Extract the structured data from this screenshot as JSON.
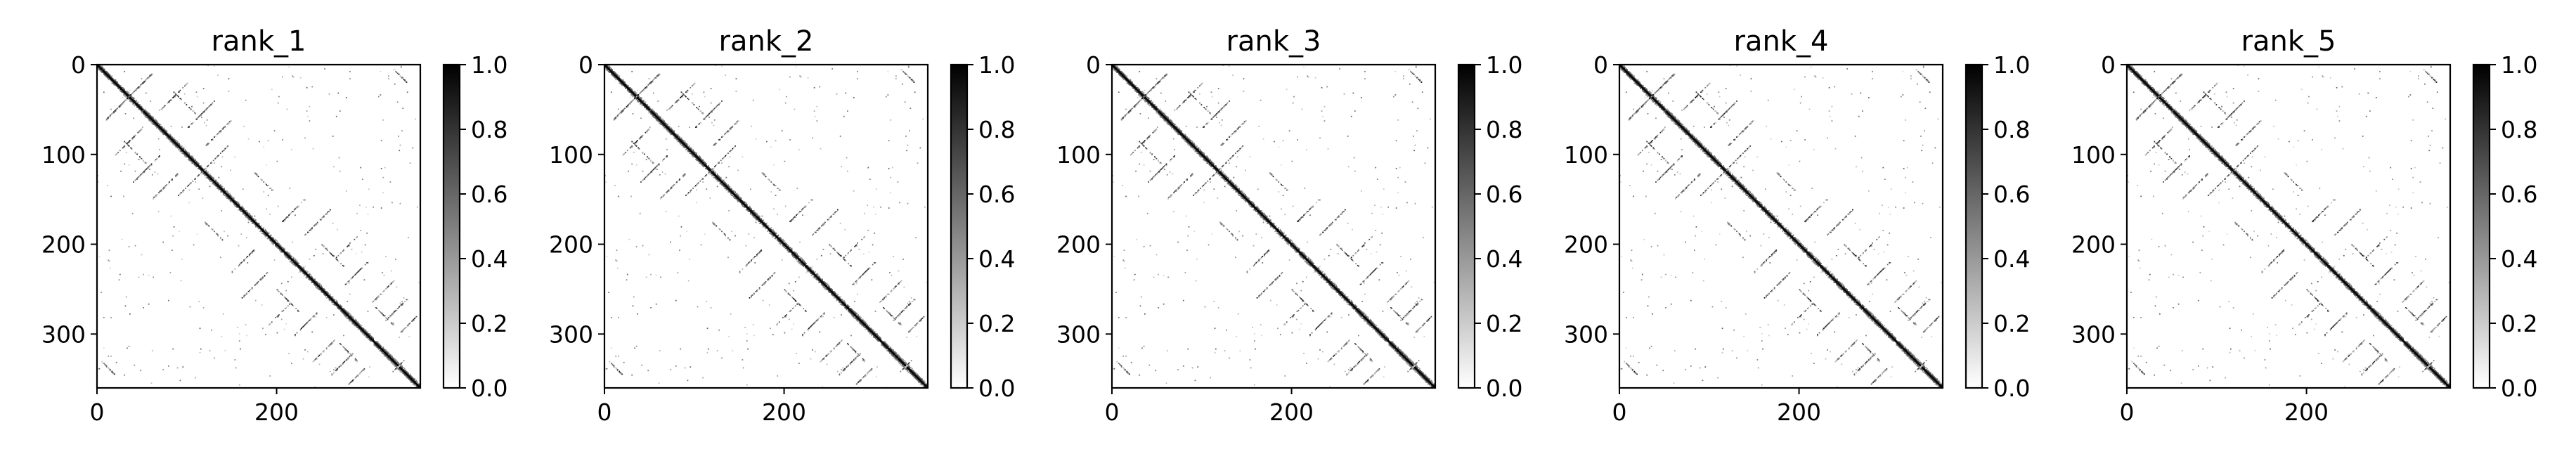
{
  "figure": {
    "background": "#ffffff",
    "colormap": "binary (white → black)",
    "colormap_low": "#ffffff",
    "colormap_high": "#000000"
  },
  "chart_data": [
    {
      "type": "heatmap",
      "title": "rank_1",
      "size": 360,
      "xlim": [
        0,
        360
      ],
      "ylim": [
        360,
        0
      ],
      "x_ticks": [
        0,
        200
      ],
      "x_tick_labels": [
        "0",
        "200"
      ],
      "y_ticks": [
        0,
        100,
        200,
        300
      ],
      "y_tick_labels": [
        "0",
        "100",
        "200",
        "300"
      ],
      "colorbar": {
        "range": [
          0.0,
          1.0
        ],
        "ticks": [
          0.0,
          0.2,
          0.4,
          0.6,
          0.8,
          1.0
        ],
        "tick_labels": [
          "0.0",
          "0.2",
          "0.4",
          "0.6",
          "0.8",
          "1.0"
        ]
      },
      "pattern": "contact map with strong main diagonal and faint off-diagonal bands; values 0–1"
    },
    {
      "type": "heatmap",
      "title": "rank_2",
      "size": 360,
      "xlim": [
        0,
        360
      ],
      "ylim": [
        360,
        0
      ],
      "x_ticks": [
        0,
        200
      ],
      "x_tick_labels": [
        "0",
        "200"
      ],
      "y_ticks": [
        0,
        100,
        200,
        300
      ],
      "y_tick_labels": [
        "0",
        "100",
        "200",
        "300"
      ],
      "colorbar": {
        "range": [
          0.0,
          1.0
        ],
        "ticks": [
          0.0,
          0.2,
          0.4,
          0.6,
          0.8,
          1.0
        ],
        "tick_labels": [
          "0.0",
          "0.2",
          "0.4",
          "0.6",
          "0.8",
          "1.0"
        ]
      },
      "pattern": "contact map with strong main diagonal and faint off-diagonal bands; values 0–1"
    },
    {
      "type": "heatmap",
      "title": "rank_3",
      "size": 360,
      "xlim": [
        0,
        360
      ],
      "ylim": [
        360,
        0
      ],
      "x_ticks": [
        0,
        200
      ],
      "x_tick_labels": [
        "0",
        "200"
      ],
      "y_ticks": [
        0,
        100,
        200,
        300
      ],
      "y_tick_labels": [
        "0",
        "100",
        "200",
        "300"
      ],
      "colorbar": {
        "range": [
          0.0,
          1.0
        ],
        "ticks": [
          0.0,
          0.2,
          0.4,
          0.6,
          0.8,
          1.0
        ],
        "tick_labels": [
          "0.0",
          "0.2",
          "0.4",
          "0.6",
          "0.8",
          "1.0"
        ]
      },
      "pattern": "contact map with strong main diagonal and faint off-diagonal bands; values 0–1"
    },
    {
      "type": "heatmap",
      "title": "rank_4",
      "size": 360,
      "xlim": [
        0,
        360
      ],
      "ylim": [
        360,
        0
      ],
      "x_ticks": [
        0,
        200
      ],
      "x_tick_labels": [
        "0",
        "200"
      ],
      "y_ticks": [
        0,
        100,
        200,
        300
      ],
      "y_tick_labels": [
        "0",
        "100",
        "200",
        "300"
      ],
      "colorbar": {
        "range": [
          0.0,
          1.0
        ],
        "ticks": [
          0.0,
          0.2,
          0.4,
          0.6,
          0.8,
          1.0
        ],
        "tick_labels": [
          "0.0",
          "0.2",
          "0.4",
          "0.6",
          "0.8",
          "1.0"
        ]
      },
      "pattern": "contact map with strong main diagonal and faint off-diagonal bands; values 0–1"
    },
    {
      "type": "heatmap",
      "title": "rank_5",
      "size": 360,
      "xlim": [
        0,
        360
      ],
      "ylim": [
        360,
        0
      ],
      "x_ticks": [
        0,
        200
      ],
      "x_tick_labels": [
        "0",
        "200"
      ],
      "y_ticks": [
        0,
        100,
        200,
        300
      ],
      "y_tick_labels": [
        "0",
        "100",
        "200",
        "300"
      ],
      "colorbar": {
        "range": [
          0.0,
          1.0
        ],
        "ticks": [
          0.0,
          0.2,
          0.4,
          0.6,
          0.8,
          1.0
        ],
        "tick_labels": [
          "0.0",
          "0.2",
          "0.4",
          "0.6",
          "0.8",
          "1.0"
        ]
      },
      "pattern": "contact map with strong main diagonal and faint off-diagonal bands; values 0–1"
    }
  ]
}
